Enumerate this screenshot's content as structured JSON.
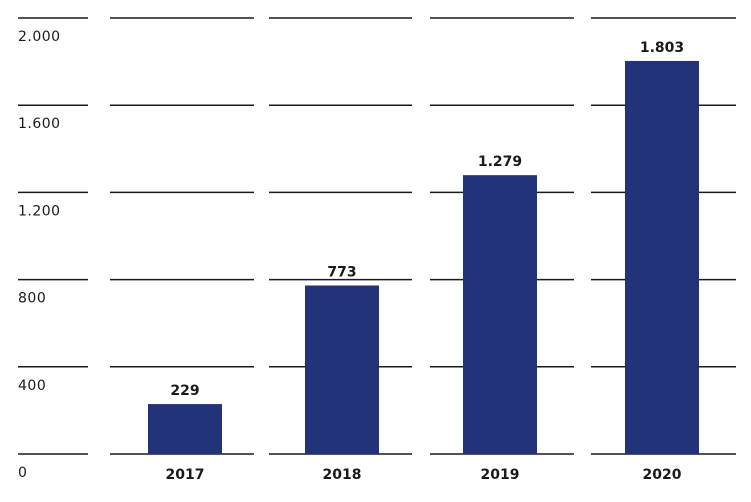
{
  "chart_data": {
    "type": "bar",
    "categories": [
      "2017",
      "2018",
      "2019",
      "2020"
    ],
    "values": [
      229,
      773,
      1279,
      1803
    ],
    "value_labels": [
      "229",
      "773",
      "1.279",
      "1.803"
    ],
    "yticks": [
      0,
      400,
      800,
      1200,
      1600,
      2000
    ],
    "ytick_labels": [
      "0",
      "400",
      "800",
      "1.200",
      "1.600",
      "2.000"
    ],
    "ylim": [
      0,
      2000
    ],
    "title": "",
    "xlabel": "",
    "ylabel": "",
    "grid": true,
    "bar_color": "#22337a",
    "grid_color": "#1a1a1a"
  }
}
